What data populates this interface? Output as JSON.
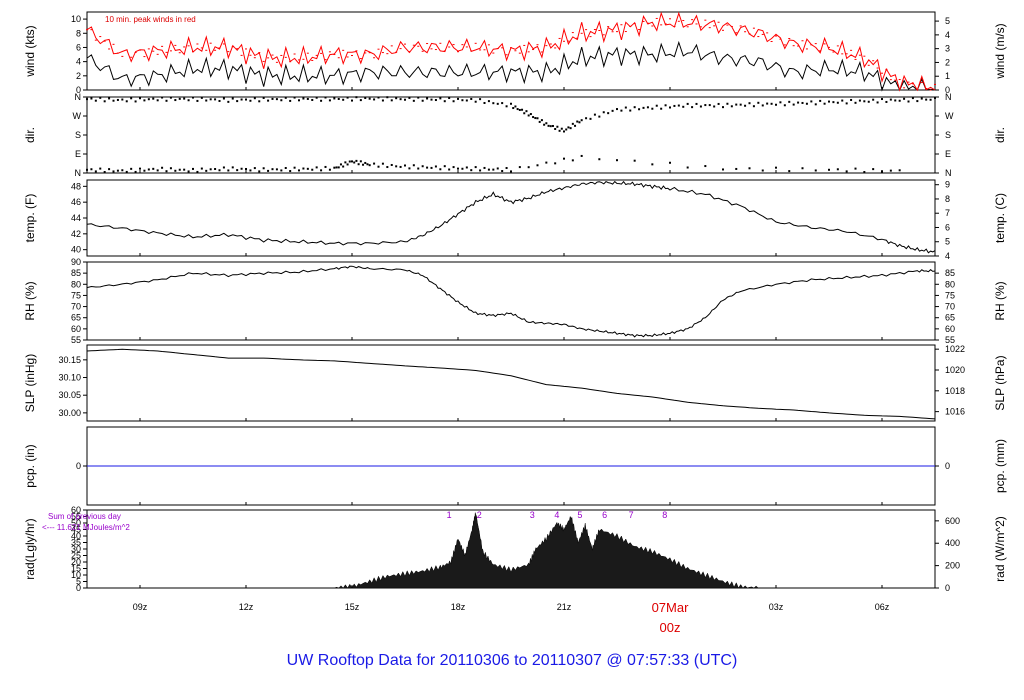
{
  "footer": {
    "prefix": "UW Rooftop Data for",
    "start": "20110306",
    "to_word": "to",
    "end": "20110307",
    "at_word": "@",
    "time": "07:57:33",
    "tz": "(UTC)"
  },
  "chart_data": [
    {
      "type": "line",
      "id": "wind",
      "ylabel_left": "wind (kts)",
      "ylabel_right": "wind (m/s)",
      "ylim": [
        0,
        11
      ],
      "left_ticks": [
        0,
        2,
        4,
        6,
        8,
        10
      ],
      "right_ylim": [
        0,
        5.66
      ],
      "right_ticks": [
        0,
        1,
        2,
        3,
        4,
        5
      ],
      "annotation": "10 min. peak winds in red",
      "series": [
        {
          "color": "#000000",
          "x": [
            7.5,
            8.5,
            9.5,
            10.5,
            11.5,
            12.5,
            13.5,
            14.5,
            15.5,
            16.5,
            17.5,
            18.5,
            19.5,
            20.5,
            21.5,
            22.5,
            23.5,
            24.5,
            25.5,
            26.5,
            27.5,
            28.5,
            29.5,
            30.5,
            31.5
          ],
          "values": [
            4.5,
            1.5,
            2.0,
            3.0,
            3.0,
            2.0,
            2.0,
            2.0,
            2.5,
            2.5,
            2.5,
            2.5,
            2.5,
            2.5,
            4.5,
            5.0,
            5.0,
            5.5,
            4.5,
            4.0,
            2.5,
            3.0,
            2.5,
            0.3,
            0.0
          ]
        },
        {
          "color": "#ff0000",
          "x": [
            7.5,
            8.5,
            9.5,
            10.5,
            11.5,
            12.5,
            13.5,
            14.5,
            15.5,
            16.5,
            17.5,
            18.5,
            19.5,
            20.5,
            21.5,
            22.5,
            23.5,
            24.5,
            25.5,
            26.5,
            27.5,
            28.5,
            29.5,
            30.5,
            31.5
          ],
          "values": [
            8.5,
            5.0,
            5.5,
            6.0,
            6.0,
            4.5,
            4.5,
            5.0,
            5.0,
            6.0,
            6.0,
            6.0,
            5.5,
            6.0,
            8.0,
            8.5,
            9.5,
            9.5,
            9.0,
            8.0,
            6.5,
            6.0,
            4.5,
            1.0,
            0.2
          ]
        }
      ]
    },
    {
      "type": "scatter",
      "id": "dir",
      "ylabel_left": "dir.",
      "ylabel_right": "dir.",
      "ylim": [
        0,
        360
      ],
      "left_ticks": [
        0,
        90,
        180,
        270,
        360
      ],
      "left_tick_labels": [
        "N",
        "E",
        "S",
        "W",
        "N"
      ],
      "right_ticks": [
        0,
        90,
        180,
        270,
        360
      ],
      "right_tick_labels": [
        "N",
        "E",
        "S",
        "W",
        "N"
      ],
      "series": [
        {
          "color": "#000000",
          "x": [
            7.5,
            8.5,
            9.5,
            10.5,
            11.5,
            12.5,
            13.5,
            14.5,
            15.5,
            16.5,
            17.5,
            18.5,
            19.5,
            20.0,
            20.5,
            21.0,
            21.5,
            22.5,
            23.5,
            24.5,
            25.5,
            26.5,
            27.5,
            28.5,
            29.5,
            30.5,
            31.5
          ],
          "values": [
            350,
            345,
            350,
            350,
            345,
            348,
            350,
            350,
            352,
            350,
            348,
            345,
            320,
            280,
            230,
            200,
            250,
            300,
            310,
            320,
            320,
            325,
            330,
            335,
            340,
            345,
            350
          ]
        },
        {
          "color": "#000000",
          "x": [
            7.5,
            8.5,
            9.5,
            10.5,
            11.5,
            12.5,
            13.5,
            14.5,
            15.0,
            15.5,
            16.5,
            17.5,
            18.5,
            19.5,
            21.5,
            25.5,
            28.5,
            30.5
          ],
          "values": [
            15,
            10,
            18,
            12,
            20,
            15,
            18,
            22,
            55,
            40,
            30,
            25,
            20,
            15,
            75,
            20,
            15,
            10
          ]
        }
      ]
    },
    {
      "type": "line",
      "id": "temp",
      "ylabel_left": "temp. (F)",
      "ylabel_right": "temp. (C)",
      "ylim": [
        39.2,
        48.8
      ],
      "left_ticks": [
        40,
        42,
        44,
        46,
        48
      ],
      "right_ylim": [
        4.0,
        9.33
      ],
      "right_ticks": [
        4,
        5,
        6,
        7,
        8,
        9
      ],
      "series": [
        {
          "color": "#000000",
          "x": [
            7.5,
            8.5,
            9.5,
            10.5,
            11.5,
            12.5,
            13.5,
            14.5,
            15.5,
            16.5,
            17.0,
            17.5,
            18.0,
            18.5,
            19.0,
            19.5,
            20.0,
            20.5,
            21.0,
            21.5,
            22.0,
            22.5,
            23.0,
            23.5,
            24.0,
            25.0,
            26.0,
            27.0,
            28.0,
            29.0,
            30.0,
            30.5,
            31.0,
            31.5
          ],
          "values": [
            43.2,
            42.7,
            42.1,
            41.6,
            41.9,
            41.2,
            41.0,
            40.8,
            40.8,
            41.0,
            41.8,
            43.0,
            44.5,
            46.0,
            47.0,
            46.0,
            46.5,
            47.3,
            47.8,
            48.3,
            48.5,
            48.4,
            48.3,
            48.0,
            47.7,
            47.0,
            45.5,
            43.5,
            42.8,
            42.3,
            41.3,
            40.5,
            40.0,
            39.7
          ]
        }
      ]
    },
    {
      "type": "line",
      "id": "rh",
      "ylabel_left": "RH (%)",
      "ylabel_right": "RH (%)",
      "ylim": [
        55,
        90
      ],
      "left_ticks": [
        55,
        60,
        65,
        70,
        75,
        80,
        85,
        90
      ],
      "right_ylim": [
        55,
        90
      ],
      "right_ticks": [
        55,
        60,
        65,
        70,
        75,
        80,
        85
      ],
      "series": [
        {
          "color": "#000000",
          "x": [
            7.5,
            8.5,
            9.5,
            10.5,
            11.5,
            12.5,
            13.5,
            14.5,
            15.0,
            15.5,
            16.5,
            17.0,
            17.5,
            18.0,
            18.5,
            19.0,
            19.5,
            20.0,
            20.5,
            21.0,
            21.5,
            22.0,
            22.5,
            23.0,
            23.5,
            24.0,
            24.5,
            25.0,
            25.5,
            26.0,
            27.0,
            28.0,
            29.0,
            30.0,
            31.0,
            31.5
          ],
          "values": [
            78.5,
            80,
            82,
            85,
            84,
            85,
            85.5,
            87,
            88,
            87,
            86.5,
            84,
            78,
            72,
            67,
            66,
            67,
            63,
            62.5,
            62,
            60,
            59,
            58,
            57,
            57,
            58,
            60,
            65,
            73,
            77,
            80,
            82,
            83,
            84,
            86,
            86
          ]
        }
      ]
    },
    {
      "type": "line",
      "id": "slp",
      "ylabel_left": "SLP (inHg)",
      "ylabel_right": "SLP (hPa)",
      "ylim": [
        29.977,
        30.192
      ],
      "left_ticks": [
        30.0,
        30.05,
        30.1,
        30.15
      ],
      "left_tick_labels": [
        "30.00",
        "30.05",
        "30.10",
        "30.15"
      ],
      "right_ylim": [
        1015.1,
        1022.4
      ],
      "right_ticks": [
        1016,
        1018,
        1020,
        1022
      ],
      "series": [
        {
          "color": "#000000",
          "x": [
            7.5,
            8.5,
            9.5,
            10.5,
            11.5,
            12.5,
            13.5,
            14.5,
            15.5,
            16.5,
            17.5,
            18.5,
            19.5,
            20.5,
            21.5,
            22.5,
            23.5,
            24.5,
            25.5,
            26.5,
            27.5,
            28.5,
            29.5,
            30.5,
            31.5
          ],
          "values": [
            30.175,
            30.18,
            30.175,
            30.165,
            30.155,
            30.155,
            30.15,
            30.147,
            30.14,
            30.133,
            30.127,
            30.12,
            30.105,
            30.08,
            30.07,
            30.055,
            30.045,
            30.03,
            30.02,
            30.013,
            30.008,
            30.0,
            29.993,
            29.99,
            29.983
          ]
        }
      ]
    },
    {
      "type": "line",
      "id": "pcp",
      "ylabel_left": "pcp. (in)",
      "ylabel_right": "pcp. (mm)",
      "ylim": [
        -1,
        1
      ],
      "left_ticks": [
        0
      ],
      "right_ticks": [
        0
      ],
      "series": [
        {
          "color": "#1a1ae6",
          "x": [
            7.5,
            31.5
          ],
          "values": [
            0,
            0
          ]
        }
      ]
    },
    {
      "type": "area",
      "id": "rad",
      "ylabel_left": "rad(Lgly/hr)",
      "ylabel_right": "rad (W/m^2)",
      "ylim": [
        0,
        60
      ],
      "left_ticks": [
        0,
        5,
        10,
        15,
        20,
        25,
        30,
        35,
        40,
        45,
        50,
        55,
        60
      ],
      "right_ylim": [
        0,
        697
      ],
      "right_ticks": [
        0,
        200,
        400,
        600
      ],
      "annotation_line1": "Sum of previous day",
      "annotation_line2": "<--- 11.621 MJoules/m^2",
      "markers": [
        {
          "label": "1",
          "x": 17.75
        },
        {
          "label": "2",
          "x": 18.6
        },
        {
          "label": "3",
          "x": 20.1
        },
        {
          "label": "4",
          "x": 20.8
        },
        {
          "label": "5",
          "x": 21.45
        },
        {
          "label": "6",
          "x": 22.15
        },
        {
          "label": "7",
          "x": 22.9
        },
        {
          "label": "8",
          "x": 23.85
        }
      ],
      "series": [
        {
          "color": "#000000",
          "x": [
            14.5,
            15.0,
            15.5,
            16.0,
            16.5,
            17.0,
            17.5,
            17.8,
            18.0,
            18.2,
            18.4,
            18.5,
            18.7,
            19.0,
            19.5,
            20.0,
            20.2,
            20.5,
            20.8,
            21.0,
            21.2,
            21.4,
            21.6,
            21.8,
            22.0,
            22.5,
            23.0,
            23.5,
            24.0,
            24.5,
            25.0,
            25.5,
            26.0,
            26.5
          ],
          "values": [
            0,
            1,
            5,
            9,
            11,
            13,
            16,
            20,
            38,
            25,
            45,
            58,
            28,
            18,
            14,
            18,
            30,
            38,
            50,
            45,
            55,
            35,
            48,
            30,
            45,
            40,
            32,
            28,
            22,
            15,
            10,
            5,
            1,
            0
          ]
        }
      ]
    },
    {
      "type": "axis",
      "id": "time-axis",
      "xlim": [
        7.5,
        31.5
      ],
      "ticks": [
        {
          "label": "09z",
          "x": 9
        },
        {
          "label": "12z",
          "x": 12
        },
        {
          "label": "15z",
          "x": 15
        },
        {
          "label": "18z",
          "x": 18
        },
        {
          "label": "21z",
          "x": 21
        },
        {
          "label": "03z",
          "x": 27
        },
        {
          "label": "06z",
          "x": 30
        }
      ],
      "day_tick": {
        "x": 24,
        "label_line1": "07Mar",
        "label_line2": "00z",
        "color": "#dd0000"
      }
    }
  ]
}
